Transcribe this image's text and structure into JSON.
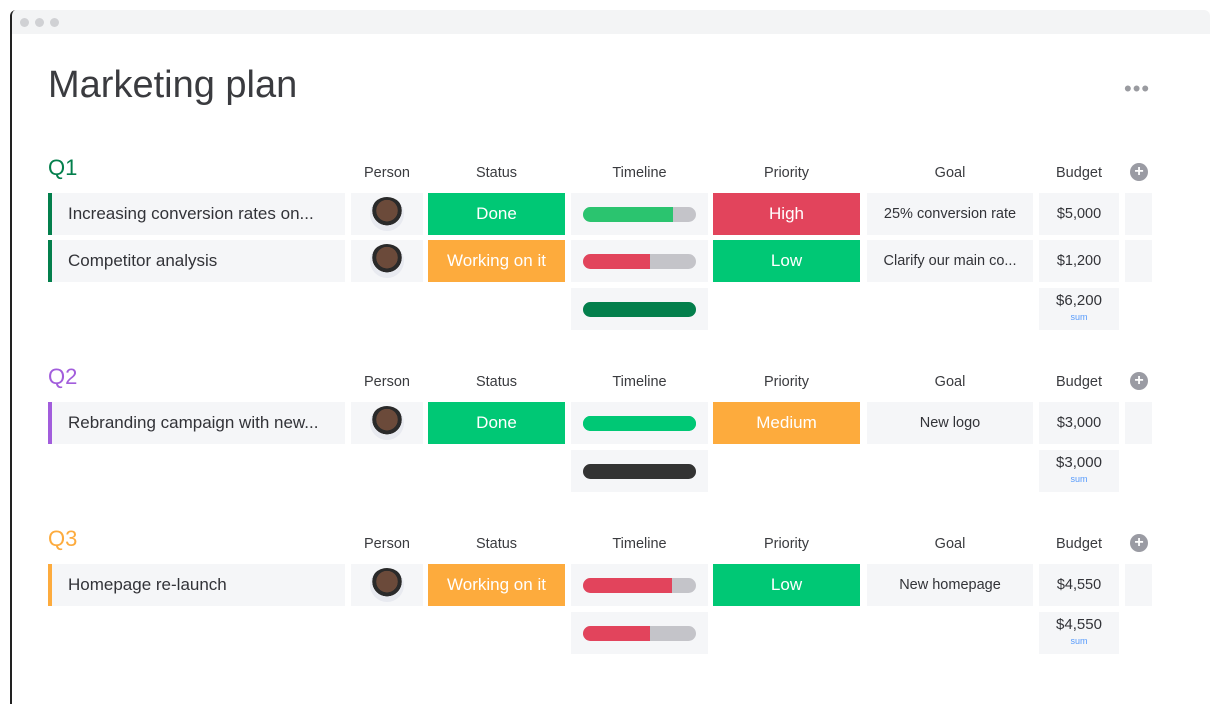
{
  "title": "Marketing plan",
  "more_icon": "•••",
  "columns": {
    "person": "Person",
    "status": "Status",
    "timeline": "Timeline",
    "priority": "Priority",
    "goal": "Goal",
    "budget": "Budget"
  },
  "groups": [
    {
      "name": "Q1",
      "color": "#037f4c",
      "rows": [
        {
          "name": "Increasing conversion rates on...",
          "status": "Done",
          "status_color": "#00c875",
          "timeline_progress": 0.8,
          "timeline_color": "#2bc46f",
          "priority": "High",
          "priority_color": "#e2445c",
          "goal": "25% conversion rate",
          "budget": "$5,000"
        },
        {
          "name": "Competitor analysis",
          "status": "Working on it",
          "status_color": "#fdab3d",
          "timeline_progress": 0.59,
          "timeline_color": "#e2445c",
          "priority": "Low",
          "priority_color": "#00c875",
          "goal": "Clarify our main co...",
          "budget": "$1,200"
        }
      ],
      "summary": {
        "timeline_progress": 1,
        "timeline_color": "#037f4c",
        "budget": "$6,200",
        "label": "sum"
      }
    },
    {
      "name": "Q2",
      "color": "#a25ddc",
      "rows": [
        {
          "name": "Rebranding campaign with new...",
          "status": "Done",
          "status_color": "#00c875",
          "timeline_progress": 1,
          "timeline_color": "#00c875",
          "priority": "Medium",
          "priority_color": "#fdab3d",
          "goal": "New logo",
          "budget": "$3,000"
        }
      ],
      "summary": {
        "timeline_progress": 1,
        "timeline_color": "#333333",
        "budget": "$3,000",
        "label": "sum"
      }
    },
    {
      "name": "Q3",
      "color": "#fdab3d",
      "rows": [
        {
          "name": "Homepage re-launch",
          "status": "Working on it",
          "status_color": "#fdab3d",
          "timeline_progress": 0.79,
          "timeline_color": "#e2445c",
          "priority": "Low",
          "priority_color": "#00c875",
          "goal": "New homepage",
          "budget": "$4,550"
        }
      ],
      "summary": {
        "timeline_progress": 0.59,
        "timeline_color": "#e2445c",
        "budget": "$4,550",
        "label": "sum"
      }
    }
  ]
}
